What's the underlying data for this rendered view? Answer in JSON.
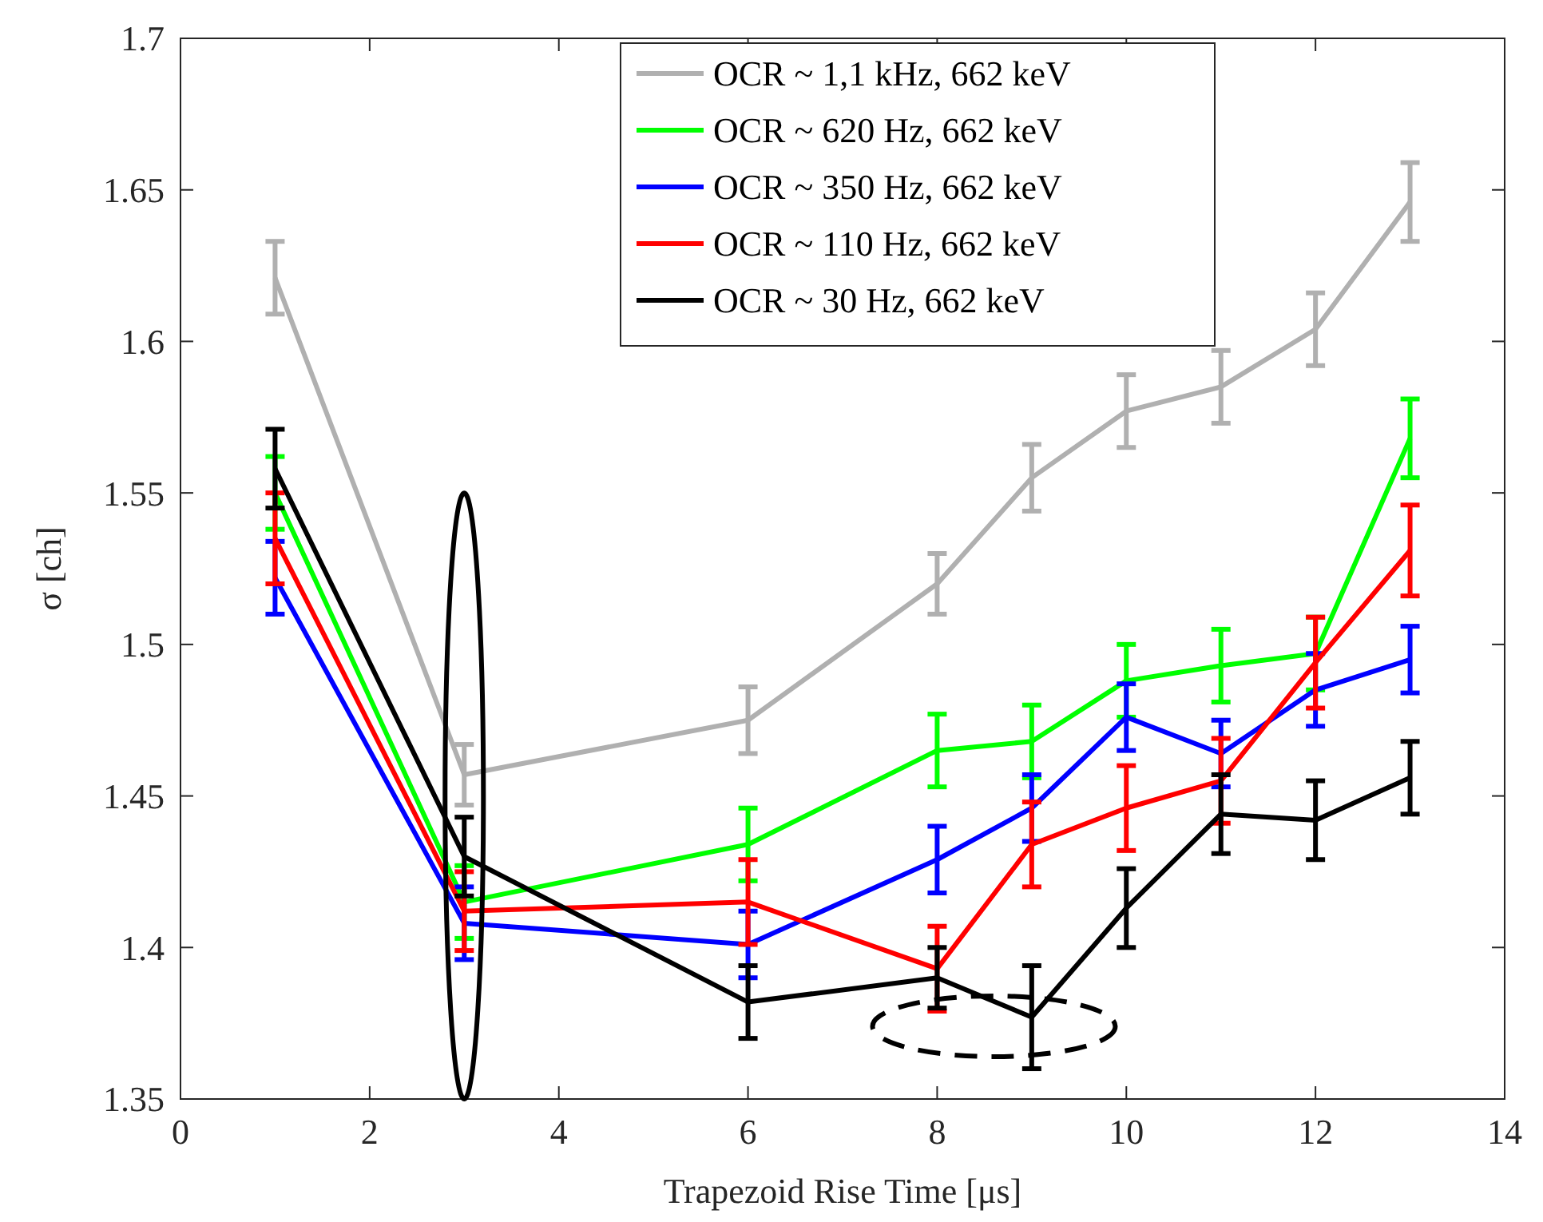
{
  "chart_data": {
    "type": "line",
    "xlabel": "Trapezoid Rise Time [μs]",
    "ylabel": "σ [ch]",
    "x": [
      1,
      3,
      6,
      8,
      9,
      10,
      11,
      12,
      13
    ],
    "xlim": [
      0,
      14
    ],
    "xticks": [
      0,
      2,
      4,
      6,
      8,
      10,
      12,
      14
    ],
    "ylim": [
      1.35,
      1.7
    ],
    "yticks": [
      1.35,
      1.4,
      1.45,
      1.5,
      1.55,
      1.6,
      1.65,
      1.7
    ],
    "legend": "top",
    "grid": false,
    "marker": "none",
    "line_style": "solid",
    "series": [
      {
        "name": "OCR ~ 1,1 kHz, 662 keV",
        "color": "#b0b0b0",
        "values": [
          1.621,
          1.457,
          1.475,
          1.52,
          1.555,
          1.577,
          1.585,
          1.604,
          1.646
        ],
        "errors": [
          0.012,
          0.01,
          0.011,
          0.01,
          0.011,
          0.012,
          0.012,
          0.012,
          0.013
        ]
      },
      {
        "name": "OCR ~ 620 Hz, 662 keV",
        "color": "#00ff00",
        "values": [
          1.55,
          1.415,
          1.434,
          1.465,
          1.468,
          1.488,
          1.493,
          1.497,
          1.568
        ],
        "errors": [
          0.012,
          0.012,
          0.012,
          0.012,
          0.012,
          0.012,
          0.012,
          0.012,
          0.013
        ]
      },
      {
        "name": "OCR ~ 350 Hz, 662 keV",
        "color": "#0000ff",
        "values": [
          1.522,
          1.408,
          1.401,
          1.429,
          1.446,
          1.476,
          1.464,
          1.485,
          1.495
        ],
        "errors": [
          0.012,
          0.012,
          0.011,
          0.011,
          0.011,
          0.011,
          0.011,
          0.012,
          0.011
        ]
      },
      {
        "name": "OCR ~ 110 Hz, 662 keV",
        "color": "#ff0000",
        "values": [
          1.535,
          1.412,
          1.415,
          1.393,
          1.434,
          1.446,
          1.455,
          1.494,
          1.531
        ],
        "errors": [
          0.015,
          0.013,
          0.014,
          0.014,
          0.014,
          0.014,
          0.014,
          0.015,
          0.015
        ]
      },
      {
        "name": "OCR ~ 30 Hz, 662 keV",
        "color": "#000000",
        "values": [
          1.558,
          1.43,
          1.382,
          1.39,
          1.377,
          1.413,
          1.444,
          1.442,
          1.456
        ],
        "errors": [
          0.013,
          0.013,
          0.012,
          0.01,
          0.017,
          0.013,
          0.013,
          0.013,
          0.012
        ]
      }
    ]
  }
}
